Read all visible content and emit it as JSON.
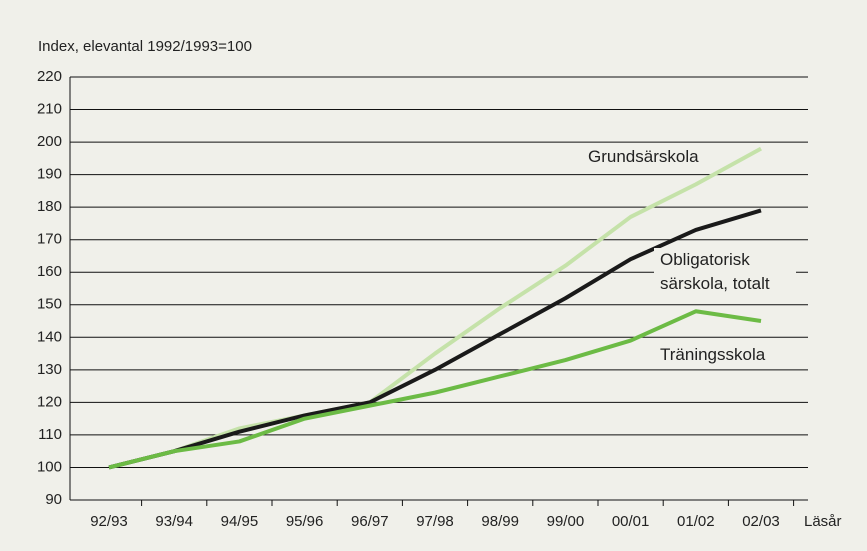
{
  "chart_data": {
    "type": "line",
    "y_label": "Index, elevantal 1992/1993=100",
    "x_label": "Läsår",
    "categories": [
      "92/93",
      "93/94",
      "94/95",
      "95/96",
      "96/97",
      "97/98",
      "98/99",
      "99/00",
      "00/01",
      "01/02",
      "02/03"
    ],
    "series": [
      {
        "name": "Grundsärskola",
        "color": "#c5e2a9",
        "values": [
          100,
          105,
          112,
          116,
          120,
          135,
          149,
          162,
          177,
          187,
          198
        ]
      },
      {
        "name": "Obligatorisk särskola, totalt",
        "color": "#1a1a1a",
        "values": [
          100,
          105,
          111,
          116,
          120,
          130,
          141,
          152,
          164,
          173,
          179
        ]
      },
      {
        "name": "Träningsskola",
        "color": "#6cbb45",
        "values": [
          100,
          105,
          108,
          115,
          119,
          123,
          128,
          133,
          139,
          148,
          145
        ]
      }
    ],
    "ylim": [
      90,
      220
    ],
    "yticks": [
      90,
      100,
      110,
      120,
      130,
      140,
      150,
      160,
      170,
      180,
      190,
      200,
      210,
      220
    ],
    "grid": true
  }
}
